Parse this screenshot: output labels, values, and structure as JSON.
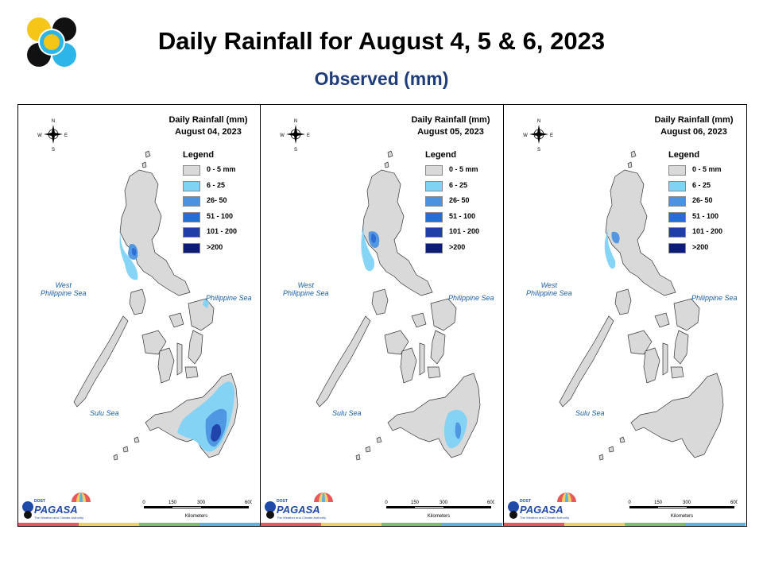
{
  "header": {
    "title": "Daily Rainfall for August 4, 5 & 6, 2023",
    "subtitle": "Observed (mm)"
  },
  "legend": {
    "title": "Legend",
    "classes": [
      {
        "label": "0 - 5 mm",
        "color": "#d9d9d9"
      },
      {
        "label": "6 - 25",
        "color": "#7fd3f5"
      },
      {
        "label": "26- 50",
        "color": "#4b93e0"
      },
      {
        "label": "51 - 100",
        "color": "#2b6bd6"
      },
      {
        "label": "101 - 200",
        "color": "#1f3fa8"
      },
      {
        "label": ">200",
        "color": "#0d1b7a"
      }
    ]
  },
  "panels": [
    {
      "title_line1": "Daily Rainfall (mm)",
      "title_line2": "August 04, 2023"
    },
    {
      "title_line1": "Daily Rainfall (mm)",
      "title_line2": "August 05, 2023"
    },
    {
      "title_line1": "Daily Rainfall (mm)",
      "title_line2": "August 06, 2023"
    }
  ],
  "labels": {
    "west_sea_line1": "West",
    "west_sea_line2": "Philippine Sea",
    "philippine_sea": "Philippine Sea",
    "sulu_sea": "Sulu Sea",
    "compass_n": "N",
    "compass_s": "S",
    "compass_e": "E",
    "compass_w": "W"
  },
  "scale_bar": {
    "ticks": [
      "0",
      "150",
      "300",
      "600"
    ],
    "unit": "Kilometers"
  },
  "branding": {
    "dost": "DOST",
    "pagasa": "PAGASA",
    "payong": "PAYONG",
    "tagline": "The Weather and Climate Authority"
  },
  "colors": {
    "land": "#d9d9d9",
    "title_blue": "#1f3d7a",
    "sea_label": "#1a5fa8",
    "strip": [
      "#e8585a",
      "#f0d060",
      "#7bbf6a",
      "#5fb2e0"
    ]
  }
}
